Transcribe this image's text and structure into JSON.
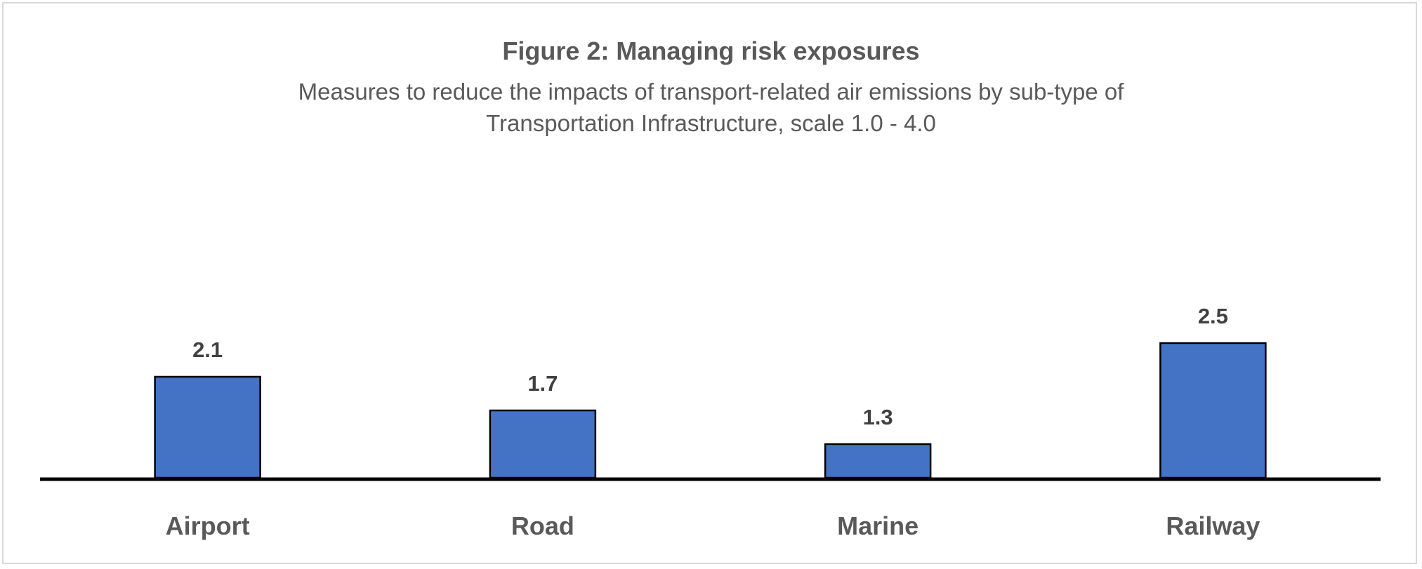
{
  "chart_data": {
    "type": "bar",
    "title": "Figure 2: Managing risk exposures",
    "subtitle_lines": [
      "Measures to reduce the impacts of transport-related air emissions by sub-type of",
      "Transportation Infrastructure, scale 1.0 - 4.0"
    ],
    "categories": [
      "Airport",
      "Road",
      "Marine",
      "Railway"
    ],
    "values": [
      2.1,
      1.7,
      1.3,
      2.5
    ],
    "data_labels": [
      "2.1",
      "1.7",
      "1.3",
      "2.5"
    ],
    "xlabel": "",
    "ylabel": "",
    "ylim": [
      0.9,
      3.5
    ],
    "grid": false,
    "legend": "none",
    "bar_color": "#4472C4",
    "bar_outline": "#000000"
  }
}
